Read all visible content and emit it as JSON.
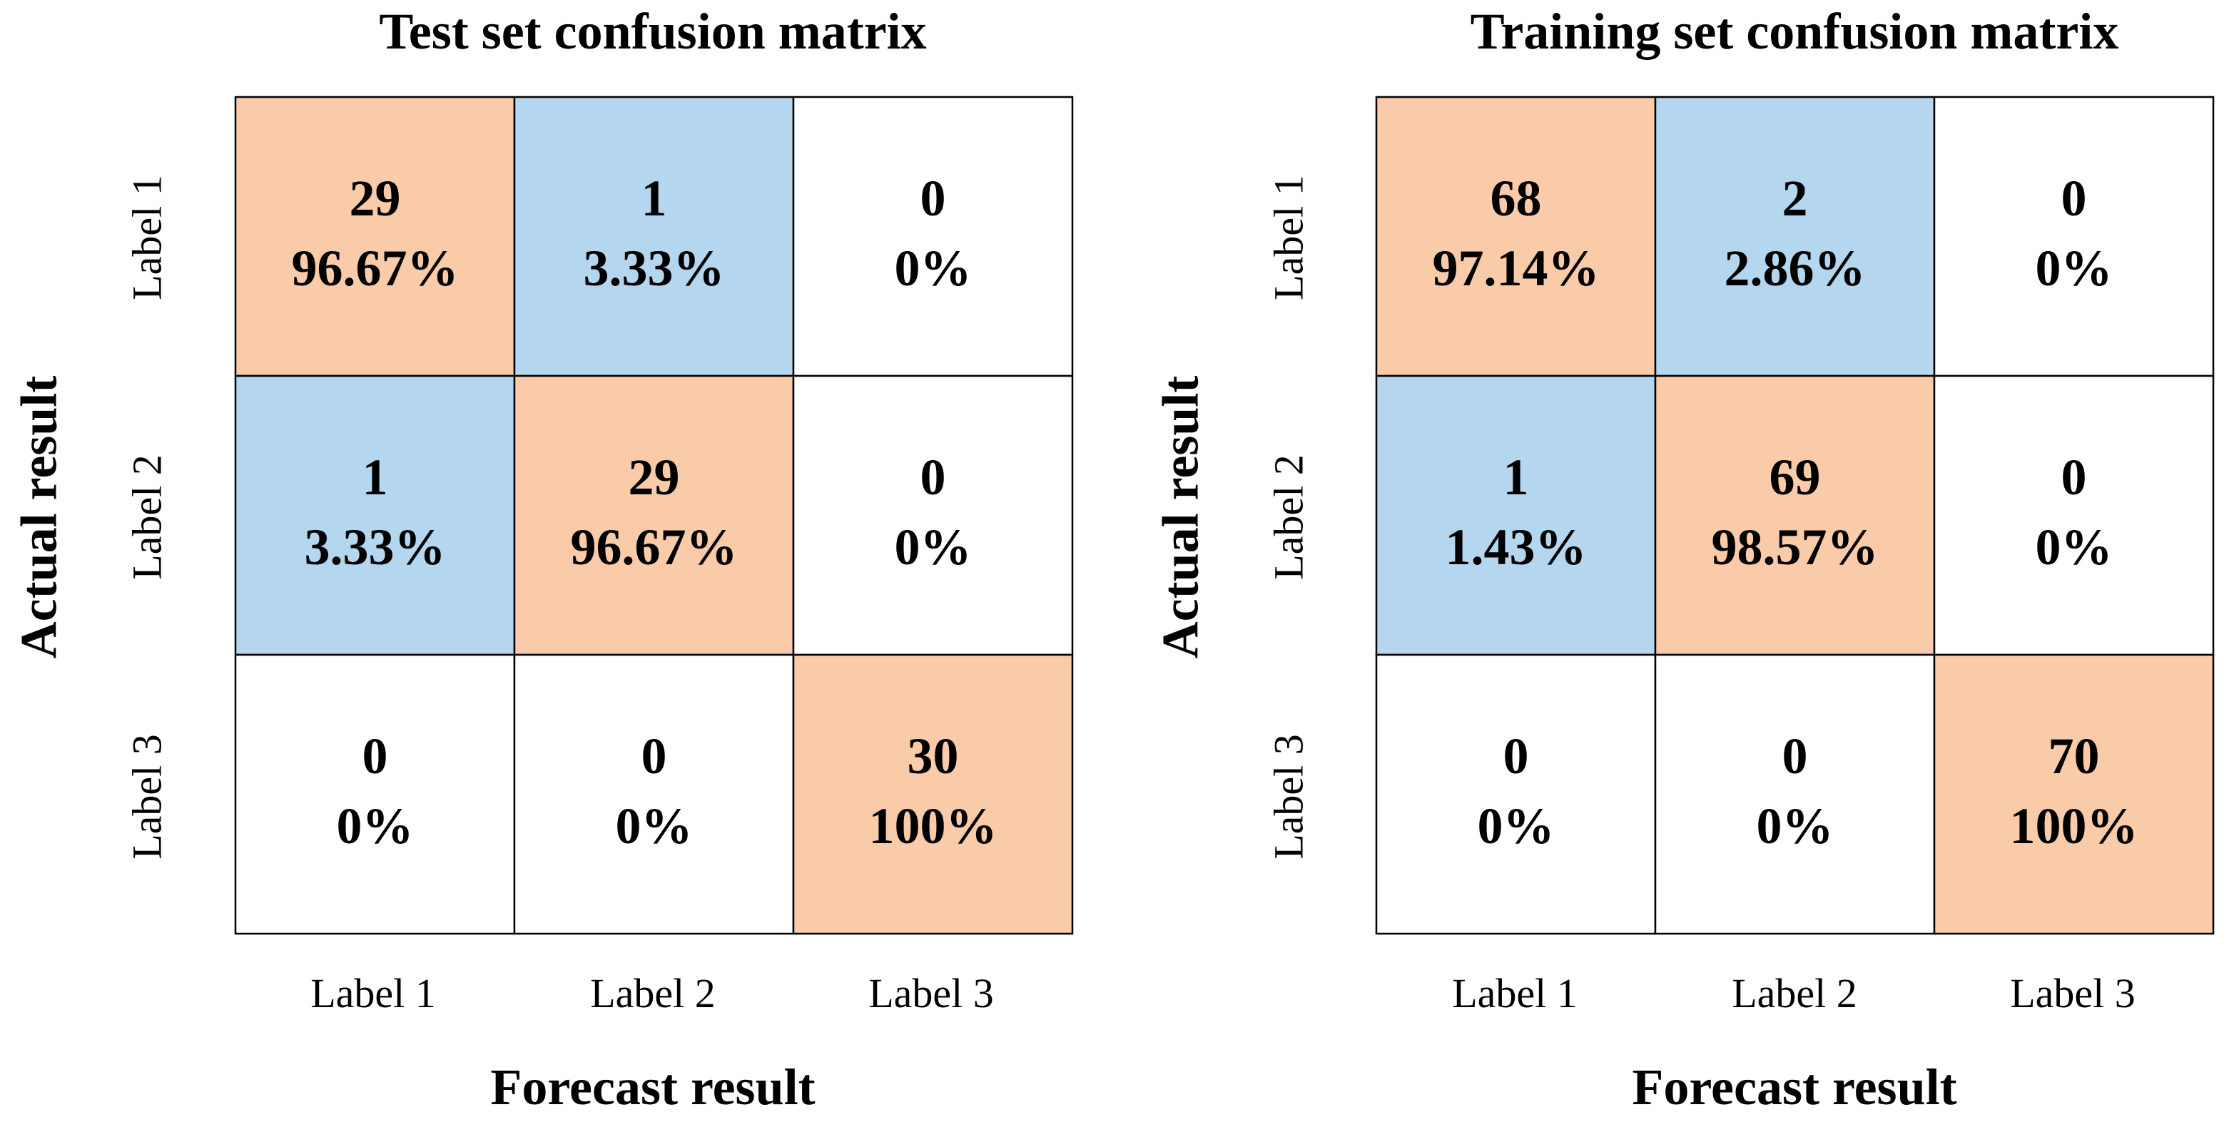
{
  "colors": {
    "diagonal": "#f9cba8",
    "misclassified": "#b4d6ee",
    "zero": "#ffffff"
  },
  "chart_data": [
    {
      "type": "heatmap",
      "title": "Test set confusion matrix",
      "xlabel": "Forecast result",
      "ylabel": "Actual result",
      "x_ticks": [
        "Label 1",
        "Label 2",
        "Label 3"
      ],
      "y_ticks": [
        "Label 1",
        "Label 2",
        "Label 3"
      ],
      "counts": [
        [
          29,
          1,
          0
        ],
        [
          1,
          29,
          0
        ],
        [
          0,
          0,
          30
        ]
      ],
      "percentages": [
        [
          "96.67%",
          "3.33%",
          "0%"
        ],
        [
          "3.33%",
          "96.67%",
          "0%"
        ],
        [
          "0%",
          "0%",
          "100%"
        ]
      ]
    },
    {
      "type": "heatmap",
      "title": "Training set confusion matrix",
      "xlabel": "Forecast result",
      "ylabel": "Actual result",
      "x_ticks": [
        "Label 1",
        "Label 2",
        "Label 3"
      ],
      "y_ticks": [
        "Label 1",
        "Label 2",
        "Label 3"
      ],
      "counts": [
        [
          68,
          2,
          0
        ],
        [
          1,
          69,
          0
        ],
        [
          0,
          0,
          70
        ]
      ],
      "percentages": [
        [
          "97.14%",
          "2.86%",
          "0%"
        ],
        [
          "1.43%",
          "98.57%",
          "0%"
        ],
        [
          "0%",
          "0%",
          "100%"
        ]
      ]
    }
  ]
}
